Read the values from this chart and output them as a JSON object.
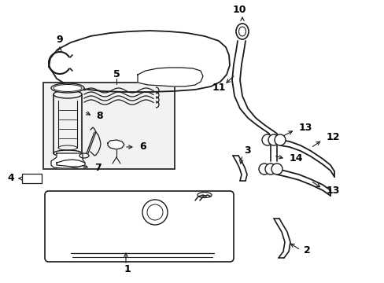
{
  "bg_color": "#ffffff",
  "line_color": "#1a1a1a",
  "label_color": "#000000",
  "figsize": [
    4.89,
    3.6
  ],
  "dpi": 100,
  "xlim": [
    0,
    489
  ],
  "ylim": [
    0,
    360
  ]
}
